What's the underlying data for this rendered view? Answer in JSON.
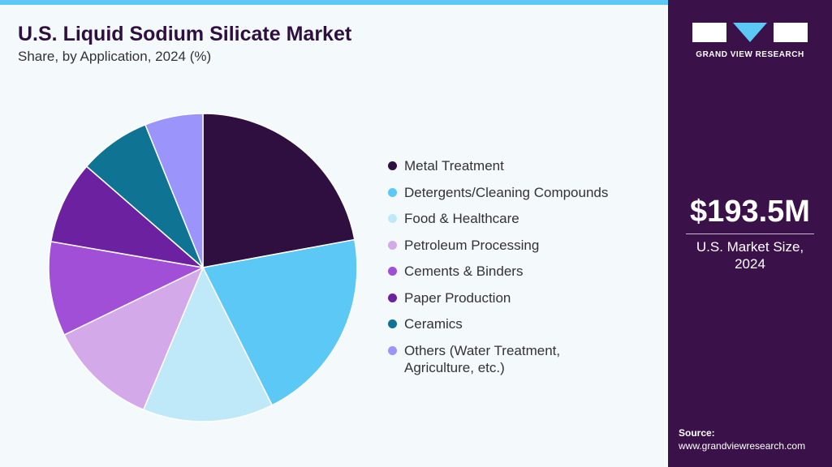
{
  "chart_data": {
    "type": "pie",
    "title": "U.S. Liquid Sodium Silicate Market",
    "subtitle": "Share, by Application, 2024 (%)",
    "categories": [
      "Metal Treatment",
      "Detergents/Cleaning Compounds",
      "Food & Healthcare",
      "Petroleum Processing",
      "Cements & Binders",
      "Paper Production",
      "Ceramics",
      "Others (Water Treatment, Agriculture, etc.)"
    ],
    "values": [
      22.1,
      20.5,
      13.7,
      11.5,
      9.9,
      8.7,
      7.5,
      6.1
    ],
    "colors": [
      "#2f0f3f",
      "#5bc8f5",
      "#bfe8f8",
      "#d4a9ea",
      "#a24fd8",
      "#6b21a0",
      "#0f7394",
      "#9b95fb"
    ]
  },
  "sidebar": {
    "brand": "GRAND VIEW RESEARCH",
    "market_size": "$193.5M",
    "market_label": "U.S. Market Size, 2024",
    "source_label": "Source:",
    "source_url": "www.grandviewresearch.com"
  }
}
